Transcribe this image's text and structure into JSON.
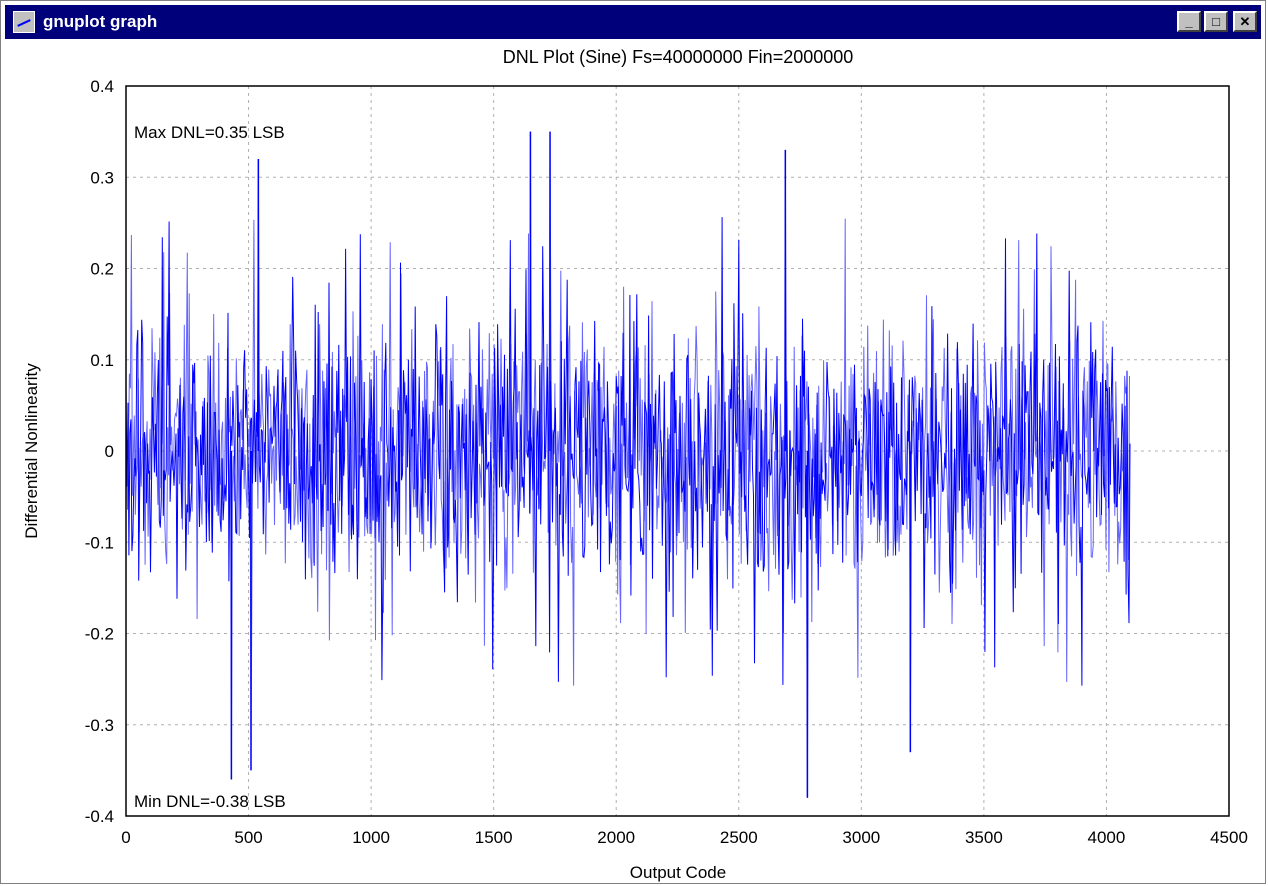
{
  "window": {
    "title": "gnuplot graph",
    "buttons": {
      "minimize": "_",
      "maximize": "□",
      "close": "✕"
    }
  },
  "chart_data": {
    "type": "line",
    "title": "DNL Plot (Sine) Fs=40000000 Fin=2000000",
    "xlabel": "Output Code",
    "ylabel": "Differential Nonlinearity",
    "xlim": [
      0,
      4500
    ],
    "ylim": [
      -0.4,
      0.4
    ],
    "xticks": [
      "0",
      "500",
      "1000",
      "1500",
      "2000",
      "2500",
      "3000",
      "3500",
      "4000",
      "4500"
    ],
    "yticks": [
      "0.4",
      "0.3",
      "0.2",
      "0.1",
      "0",
      "-0.1",
      "-0.2",
      "-0.3",
      "-0.4"
    ],
    "grid": true,
    "annotations": [
      "Max DNL=0.35 LSB",
      "Min DNL=-0.38 LSB"
    ],
    "series": [
      {
        "color": "#0000ff",
        "x_range": [
          0,
          4096
        ],
        "peaks": [
          {
            "x": 430,
            "y": -0.36
          },
          {
            "x": 510,
            "y": -0.35
          },
          {
            "x": 540,
            "y": 0.32
          },
          {
            "x": 1650,
            "y": 0.35
          },
          {
            "x": 1730,
            "y": 0.35
          },
          {
            "x": 2690,
            "y": 0.33
          },
          {
            "x": 2780,
            "y": -0.38
          },
          {
            "x": 3200,
            "y": -0.33
          }
        ]
      }
    ],
    "colors": {
      "line": "#0000ff",
      "line_light": "#6666ff",
      "grid": "#b0b0b0"
    }
  }
}
